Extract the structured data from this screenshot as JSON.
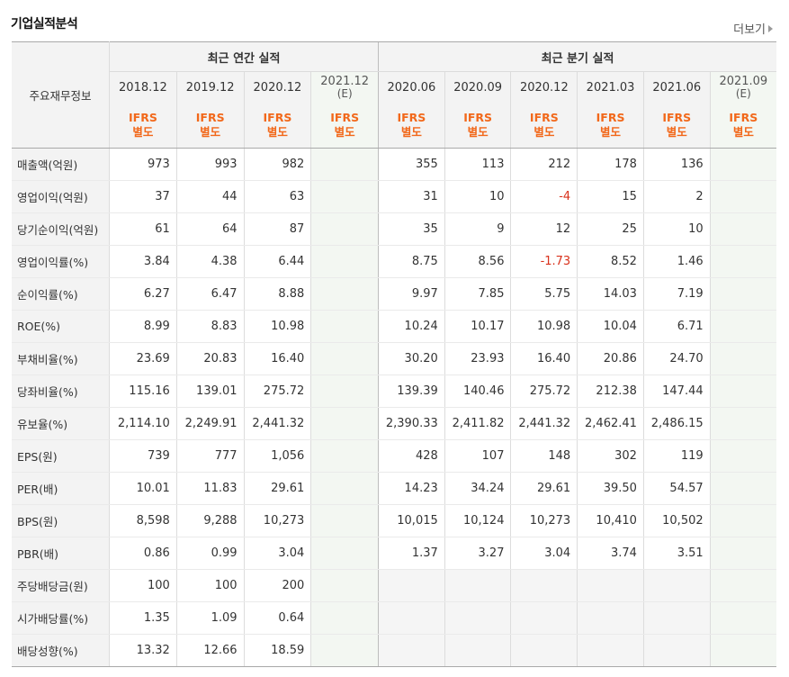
{
  "header": {
    "title": "기업실적분석",
    "more_label": "더보기"
  },
  "table": {
    "row_header_label": "주요재무정보",
    "group_annual": "최근 연간 실적",
    "group_quarter": "최근 분기 실적",
    "annual_periods": [
      {
        "year": "2018.12",
        "est": "",
        "ifrs_line1": "IFRS",
        "ifrs_line2": "별도"
      },
      {
        "year": "2019.12",
        "est": "",
        "ifrs_line1": "IFRS",
        "ifrs_line2": "별도"
      },
      {
        "year": "2020.12",
        "est": "",
        "ifrs_line1": "IFRS",
        "ifrs_line2": "별도"
      },
      {
        "year": "2021.12",
        "est": "(E)",
        "ifrs_line1": "IFRS",
        "ifrs_line2": "별도"
      }
    ],
    "quarter_periods": [
      {
        "year": "2020.06",
        "est": "",
        "ifrs_line1": "IFRS",
        "ifrs_line2": "별도"
      },
      {
        "year": "2020.09",
        "est": "",
        "ifrs_line1": "IFRS",
        "ifrs_line2": "별도"
      },
      {
        "year": "2020.12",
        "est": "",
        "ifrs_line1": "IFRS",
        "ifrs_line2": "별도"
      },
      {
        "year": "2021.03",
        "est": "",
        "ifrs_line1": "IFRS",
        "ifrs_line2": "별도"
      },
      {
        "year": "2021.06",
        "est": "",
        "ifrs_line1": "IFRS",
        "ifrs_line2": "별도"
      },
      {
        "year": "2021.09",
        "est": "(E)",
        "ifrs_line1": "IFRS",
        "ifrs_line2": "별도"
      }
    ],
    "rows": [
      {
        "label": "매출액(억원)",
        "annual": [
          "973",
          "993",
          "982",
          ""
        ],
        "quarter": [
          "355",
          "113",
          "212",
          "178",
          "136",
          ""
        ]
      },
      {
        "label": "영업이익(억원)",
        "annual": [
          "37",
          "44",
          "63",
          ""
        ],
        "quarter": [
          "31",
          "10",
          "-4",
          "15",
          "2",
          ""
        ]
      },
      {
        "label": "당기순이익(억원)",
        "annual": [
          "61",
          "64",
          "87",
          ""
        ],
        "quarter": [
          "35",
          "9",
          "12",
          "25",
          "10",
          ""
        ]
      },
      {
        "label": "영업이익률(%)",
        "annual": [
          "3.84",
          "4.38",
          "6.44",
          ""
        ],
        "quarter": [
          "8.75",
          "8.56",
          "-1.73",
          "8.52",
          "1.46",
          ""
        ]
      },
      {
        "label": "순이익률(%)",
        "annual": [
          "6.27",
          "6.47",
          "8.88",
          ""
        ],
        "quarter": [
          "9.97",
          "7.85",
          "5.75",
          "14.03",
          "7.19",
          ""
        ]
      },
      {
        "label": "ROE(%)",
        "annual": [
          "8.99",
          "8.83",
          "10.98",
          ""
        ],
        "quarter": [
          "10.24",
          "10.17",
          "10.98",
          "10.04",
          "6.71",
          ""
        ]
      },
      {
        "label": "부채비율(%)",
        "annual": [
          "23.69",
          "20.83",
          "16.40",
          ""
        ],
        "quarter": [
          "30.20",
          "23.93",
          "16.40",
          "20.86",
          "24.70",
          ""
        ]
      },
      {
        "label": "당좌비율(%)",
        "annual": [
          "115.16",
          "139.01",
          "275.72",
          ""
        ],
        "quarter": [
          "139.39",
          "140.46",
          "275.72",
          "212.38",
          "147.44",
          ""
        ]
      },
      {
        "label": "유보율(%)",
        "annual": [
          "2,114.10",
          "2,249.91",
          "2,441.32",
          ""
        ],
        "quarter": [
          "2,390.33",
          "2,411.82",
          "2,441.32",
          "2,462.41",
          "2,486.15",
          ""
        ]
      },
      {
        "label": "EPS(원)",
        "annual": [
          "739",
          "777",
          "1,056",
          ""
        ],
        "quarter": [
          "428",
          "107",
          "148",
          "302",
          "119",
          ""
        ]
      },
      {
        "label": "PER(배)",
        "annual": [
          "10.01",
          "11.83",
          "29.61",
          ""
        ],
        "quarter": [
          "14.23",
          "34.24",
          "29.61",
          "39.50",
          "54.57",
          ""
        ]
      },
      {
        "label": "BPS(원)",
        "annual": [
          "8,598",
          "9,288",
          "10,273",
          ""
        ],
        "quarter": [
          "10,015",
          "10,124",
          "10,273",
          "10,410",
          "10,502",
          ""
        ]
      },
      {
        "label": "PBR(배)",
        "annual": [
          "0.86",
          "0.99",
          "3.04",
          ""
        ],
        "quarter": [
          "1.37",
          "3.27",
          "3.04",
          "3.74",
          "3.51",
          ""
        ]
      },
      {
        "label": "주당배당금(원)",
        "annual": [
          "100",
          "100",
          "200",
          ""
        ],
        "quarter": [
          "",
          "",
          "",
          "",
          "",
          ""
        ]
      },
      {
        "label": "시가배당률(%)",
        "annual": [
          "1.35",
          "1.09",
          "0.64",
          ""
        ],
        "quarter": [
          "",
          "",
          "",
          "",
          "",
          ""
        ]
      },
      {
        "label": "배당성향(%)",
        "annual": [
          "13.32",
          "12.66",
          "18.59",
          ""
        ],
        "quarter": [
          "",
          "",
          "",
          "",
          "",
          ""
        ]
      }
    ]
  }
}
